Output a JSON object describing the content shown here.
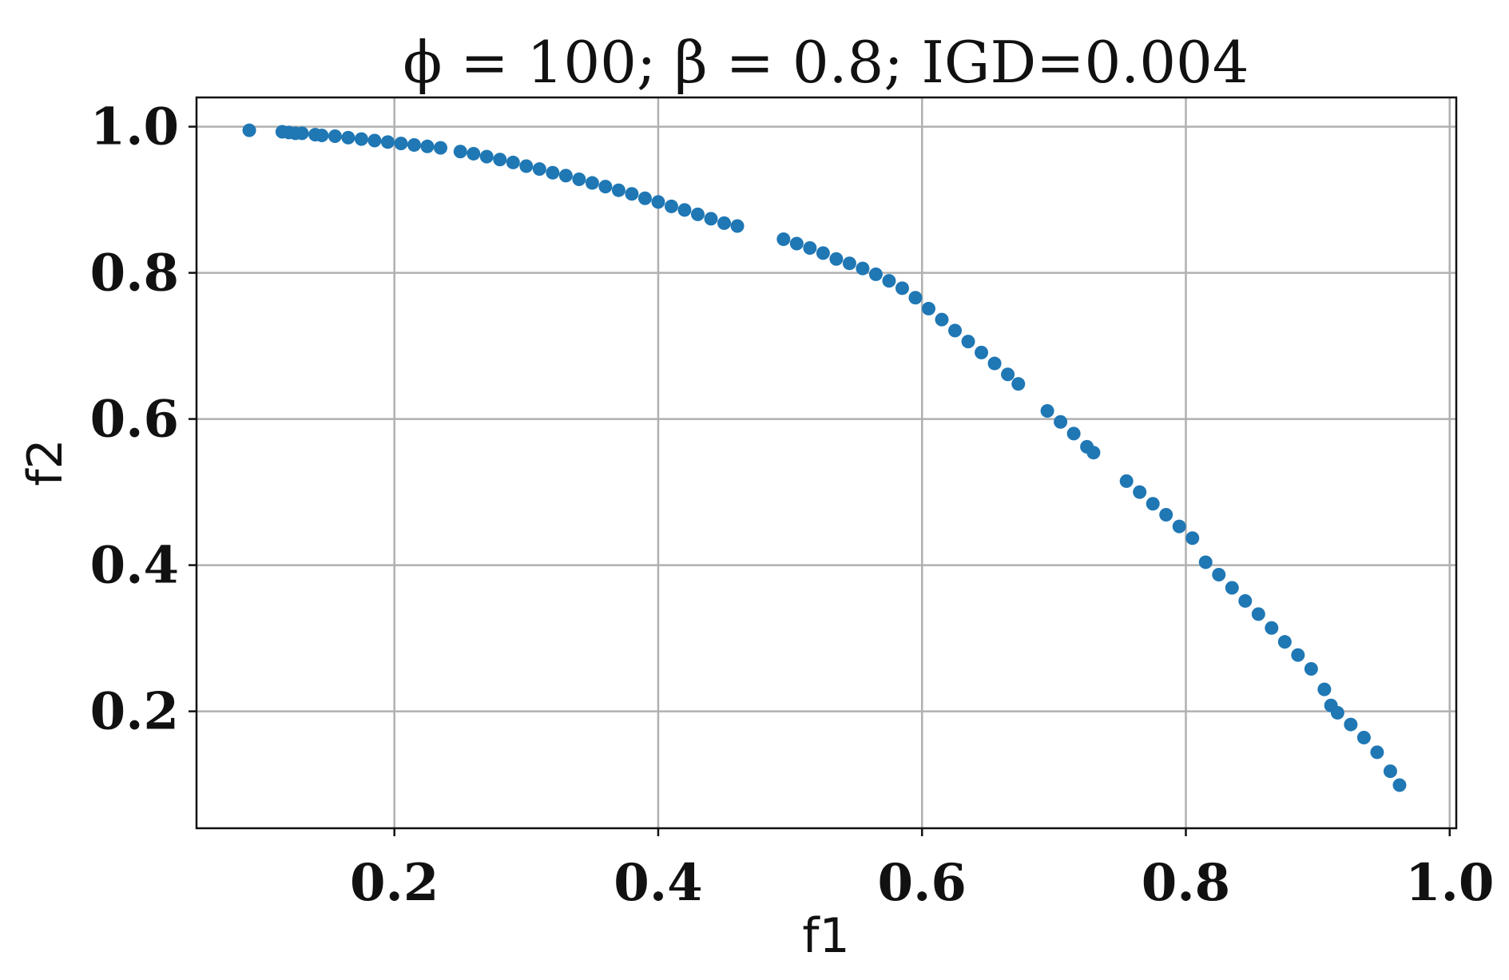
{
  "chart_data": {
    "type": "scatter",
    "title": "ϕ = 100; β = 0.8; IGD=0.004",
    "xlabel": "f1",
    "ylabel": "f2",
    "xlim": [
      0.05,
      1.005
    ],
    "ylim": [
      0.04,
      1.04
    ],
    "xticks": [
      0.2,
      0.4,
      0.6,
      0.8,
      1.0
    ],
    "xtick_labels": [
      "0.2",
      "0.4",
      "0.6",
      "0.8",
      "1.0"
    ],
    "yticks": [
      0.2,
      0.4,
      0.6,
      0.8,
      1.0
    ],
    "ytick_labels": [
      "0.2",
      "0.4",
      "0.6",
      "0.8",
      "1.0"
    ],
    "grid": true,
    "marker_color": "#1f77b4",
    "series": [
      {
        "points": [
          [
            0.09,
            0.995
          ],
          [
            0.115,
            0.993
          ],
          [
            0.12,
            0.992
          ],
          [
            0.125,
            0.991
          ],
          [
            0.13,
            0.991
          ],
          [
            0.14,
            0.989
          ],
          [
            0.145,
            0.988
          ],
          [
            0.155,
            0.987
          ],
          [
            0.165,
            0.985
          ],
          [
            0.175,
            0.983
          ],
          [
            0.185,
            0.981
          ],
          [
            0.195,
            0.979
          ],
          [
            0.205,
            0.977
          ],
          [
            0.215,
            0.975
          ],
          [
            0.225,
            0.973
          ],
          [
            0.235,
            0.971
          ],
          [
            0.25,
            0.966
          ],
          [
            0.26,
            0.963
          ],
          [
            0.27,
            0.959
          ],
          [
            0.28,
            0.955
          ],
          [
            0.29,
            0.951
          ],
          [
            0.3,
            0.946
          ],
          [
            0.31,
            0.942
          ],
          [
            0.32,
            0.937
          ],
          [
            0.33,
            0.933
          ],
          [
            0.34,
            0.928
          ],
          [
            0.35,
            0.923
          ],
          [
            0.36,
            0.918
          ],
          [
            0.37,
            0.913
          ],
          [
            0.38,
            0.908
          ],
          [
            0.39,
            0.902
          ],
          [
            0.4,
            0.897
          ],
          [
            0.41,
            0.891
          ],
          [
            0.42,
            0.886
          ],
          [
            0.43,
            0.88
          ],
          [
            0.44,
            0.874
          ],
          [
            0.45,
            0.868
          ],
          [
            0.46,
            0.864
          ],
          [
            0.495,
            0.846
          ],
          [
            0.505,
            0.84
          ],
          [
            0.515,
            0.834
          ],
          [
            0.525,
            0.827
          ],
          [
            0.535,
            0.819
          ],
          [
            0.545,
            0.813
          ],
          [
            0.555,
            0.806
          ],
          [
            0.565,
            0.798
          ],
          [
            0.575,
            0.789
          ],
          [
            0.585,
            0.779
          ],
          [
            0.595,
            0.766
          ],
          [
            0.605,
            0.751
          ],
          [
            0.615,
            0.736
          ],
          [
            0.625,
            0.721
          ],
          [
            0.635,
            0.706
          ],
          [
            0.645,
            0.691
          ],
          [
            0.655,
            0.676
          ],
          [
            0.665,
            0.661
          ],
          [
            0.673,
            0.648
          ],
          [
            0.695,
            0.611
          ],
          [
            0.705,
            0.596
          ],
          [
            0.715,
            0.58
          ],
          [
            0.725,
            0.562
          ],
          [
            0.73,
            0.554
          ],
          [
            0.755,
            0.515
          ],
          [
            0.765,
            0.5
          ],
          [
            0.775,
            0.484
          ],
          [
            0.785,
            0.469
          ],
          [
            0.795,
            0.453
          ],
          [
            0.805,
            0.437
          ],
          [
            0.815,
            0.404
          ],
          [
            0.825,
            0.387
          ],
          [
            0.835,
            0.369
          ],
          [
            0.845,
            0.351
          ],
          [
            0.855,
            0.333
          ],
          [
            0.865,
            0.314
          ],
          [
            0.875,
            0.295
          ],
          [
            0.885,
            0.277
          ],
          [
            0.895,
            0.258
          ],
          [
            0.905,
            0.23
          ],
          [
            0.91,
            0.208
          ],
          [
            0.915,
            0.198
          ],
          [
            0.925,
            0.182
          ],
          [
            0.935,
            0.164
          ],
          [
            0.945,
            0.144
          ],
          [
            0.955,
            0.118
          ],
          [
            0.962,
            0.099
          ]
        ]
      }
    ]
  }
}
